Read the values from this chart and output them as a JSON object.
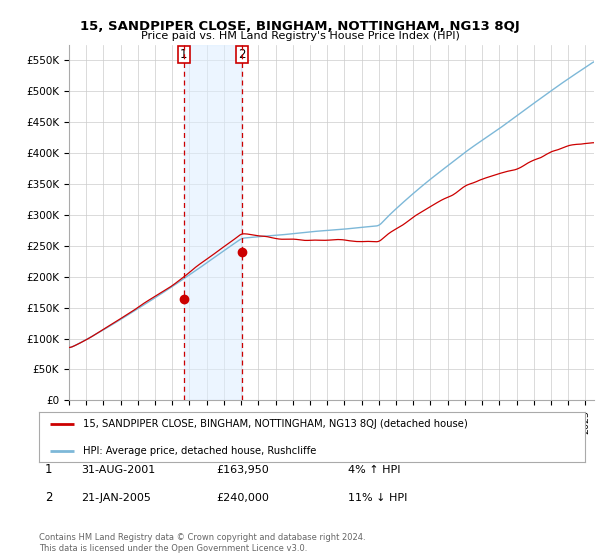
{
  "title": "15, SANDPIPER CLOSE, BINGHAM, NOTTINGHAM, NG13 8QJ",
  "subtitle": "Price paid vs. HM Land Registry's House Price Index (HPI)",
  "ylabel_ticks": [
    "£0",
    "£50K",
    "£100K",
    "£150K",
    "£200K",
    "£250K",
    "£300K",
    "£350K",
    "£400K",
    "£450K",
    "£500K",
    "£550K"
  ],
  "ylim": [
    0,
    575000
  ],
  "yticks": [
    0,
    50000,
    100000,
    150000,
    200000,
    250000,
    300000,
    350000,
    400000,
    450000,
    500000,
    550000
  ],
  "hpi_color": "#7db8d8",
  "price_color": "#cc0000",
  "marker_color": "#cc0000",
  "background_color": "#ffffff",
  "grid_color": "#cccccc",
  "legend_label_price": "15, SANDPIPER CLOSE, BINGHAM, NOTTINGHAM, NG13 8QJ (detached house)",
  "legend_label_hpi": "HPI: Average price, detached house, Rushcliffe",
  "transaction1_date": "31-AUG-2001",
  "transaction1_price": "£163,950",
  "transaction1_hpi": "4% ↑ HPI",
  "transaction2_date": "21-JAN-2005",
  "transaction2_price": "£240,000",
  "transaction2_hpi": "11% ↓ HPI",
  "footer": "Contains HM Land Registry data © Crown copyright and database right 2024.\nThis data is licensed under the Open Government Licence v3.0.",
  "vline1_x": 2001.667,
  "vline2_x": 2005.054,
  "marker1_x": 2001.667,
  "marker1_y": 163950,
  "marker2_x": 2005.054,
  "marker2_y": 240000,
  "xmin": 1995.0,
  "xmax": 2025.5,
  "span_color": "#ddeeff",
  "span_alpha": 0.55
}
